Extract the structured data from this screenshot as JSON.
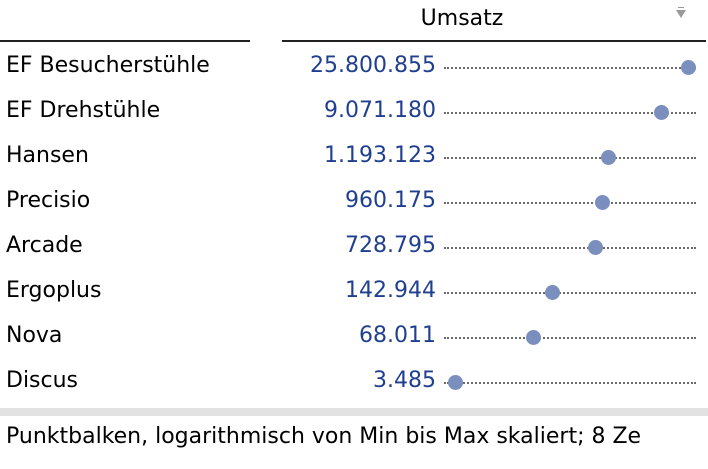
{
  "header": {
    "title": "Umsatz",
    "sort_icon": "sort-down-icon"
  },
  "chart_data": {
    "type": "scatter",
    "scale": "log",
    "x_range": [
      3485,
      25800855
    ],
    "rows": [
      {
        "label": "EF Besucherstühle",
        "value_text": "25.800.855",
        "value": 25800855
      },
      {
        "label": "EF Drehstühle",
        "value_text": "9.071.180",
        "value": 9071180
      },
      {
        "label": "Hansen",
        "value_text": "1.193.123",
        "value": 1193123
      },
      {
        "label": "Precisio",
        "value_text": "960.175",
        "value": 960175
      },
      {
        "label": "Arcade",
        "value_text": "728.795",
        "value": 728795
      },
      {
        "label": "Ergoplus",
        "value_text": "142.944",
        "value": 142944
      },
      {
        "label": "Nova",
        "value_text": "68.011",
        "value": 68011
      },
      {
        "label": "Discus",
        "value_text": "3.485",
        "value": 3485
      }
    ]
  },
  "colors": {
    "value_text": "#1f3f8f",
    "dot": "#7b8fbf"
  },
  "footer": {
    "text": "Punktbalken, logarithmisch von Min bis Max skaliert; 8 Ze"
  }
}
